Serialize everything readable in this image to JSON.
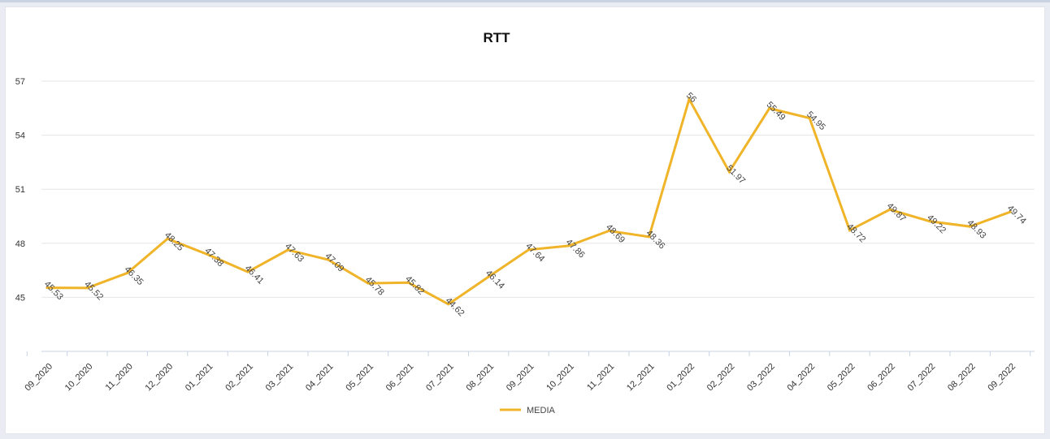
{
  "chart_data": {
    "type": "line",
    "title": "RTT",
    "categories": [
      "09_2020",
      "10_2020",
      "11_2020",
      "12_2020",
      "01_2021",
      "02_2021",
      "03_2021",
      "04_2021",
      "05_2021",
      "06_2021",
      "07_2021",
      "08_2021",
      "09_2021",
      "10_2021",
      "11_2021",
      "12_2021",
      "01_2022",
      "02_2022",
      "03_2022",
      "04_2022",
      "05_2022",
      "06_2022",
      "07_2022",
      "08_2022",
      "09_2022"
    ],
    "series": [
      {
        "name": "MEDIA",
        "values": [
          45.53,
          45.52,
          46.35,
          48.25,
          47.38,
          46.41,
          47.63,
          47.09,
          45.78,
          45.82,
          44.62,
          46.14,
          47.64,
          47.86,
          48.69,
          48.36,
          56,
          51.97,
          55.49,
          54.95,
          48.72,
          49.87,
          49.22,
          48.93,
          49.74
        ],
        "labels": [
          "45.53",
          "45.52",
          "46.35",
          "48.25",
          "47.38",
          "46.41",
          "47.63",
          "47.09",
          "45.78",
          "45.82",
          "44.62",
          "46.14",
          "47.64",
          "47.86",
          "48.69",
          "48.36",
          "56",
          "51.97",
          "55.49",
          "54.95",
          "48.72",
          "49.87",
          "49.22",
          "48.93",
          "49.74"
        ]
      }
    ],
    "yticks": [
      "45",
      "48",
      "51",
      "54",
      "57"
    ],
    "ylim": [
      42,
      57
    ],
    "grid": true,
    "legend_position": "bottom",
    "colors": {
      "line": "#f0b429",
      "grid": "#e6e6e6",
      "axis": "#c9d3e2",
      "text": "#333333",
      "label": "#444444"
    }
  }
}
